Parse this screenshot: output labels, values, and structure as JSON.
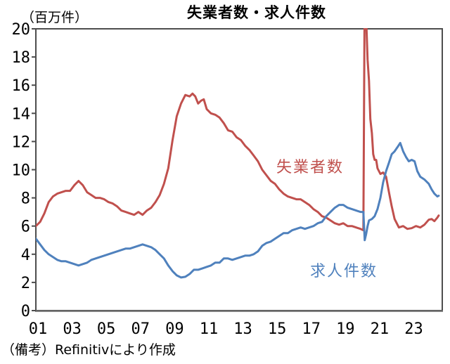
{
  "title": "失業者数・求人件数",
  "unit_label": "（百万件）",
  "note": "（備考）Refinitivにより作成",
  "series_labels": {
    "unemployed": "失業者数",
    "openings": "求人件数"
  },
  "colors": {
    "unemployed": "#C0504D",
    "openings": "#4F81BD",
    "frame": "#4d4d4d",
    "bottom_axis": "#808080",
    "text": "#000000"
  },
  "chart_data": {
    "type": "line",
    "title": "失業者数・求人件数",
    "ylabel": "（百万件）",
    "xlabel": "",
    "grid": false,
    "legend_position": "inline-annotations",
    "ylim": [
      0,
      20
    ],
    "x_domain": [
      2001,
      2024.79
    ],
    "y_ticks": [
      0,
      2,
      4,
      6,
      8,
      10,
      12,
      14,
      16,
      18,
      20
    ],
    "y_tick_labels": [
      "0",
      "2",
      "4",
      "6",
      "8",
      "10",
      "12",
      "14",
      "16",
      "18",
      "20"
    ],
    "x_ticks": [
      2001,
      2003,
      2005,
      2007,
      2009,
      2011,
      2013,
      2015,
      2017,
      2019,
      2021,
      2023
    ],
    "x_tick_labels": [
      "01",
      "03",
      "05",
      "07",
      "09",
      "11",
      "13",
      "15",
      "17",
      "19",
      "21",
      "23"
    ],
    "series": [
      {
        "name": "失業者数",
        "color": "#C0504D",
        "points": [
          [
            2001.0,
            6.0
          ],
          [
            2001.25,
            6.3
          ],
          [
            2001.5,
            6.9
          ],
          [
            2001.75,
            7.7
          ],
          [
            2002.0,
            8.1
          ],
          [
            2002.25,
            8.3
          ],
          [
            2002.5,
            8.4
          ],
          [
            2002.75,
            8.5
          ],
          [
            2003.0,
            8.5
          ],
          [
            2003.25,
            8.9
          ],
          [
            2003.5,
            9.2
          ],
          [
            2003.75,
            8.9
          ],
          [
            2004.0,
            8.4
          ],
          [
            2004.25,
            8.2
          ],
          [
            2004.5,
            8.0
          ],
          [
            2004.75,
            8.0
          ],
          [
            2005.0,
            7.9
          ],
          [
            2005.25,
            7.7
          ],
          [
            2005.5,
            7.6
          ],
          [
            2005.75,
            7.4
          ],
          [
            2006.0,
            7.1
          ],
          [
            2006.25,
            7.0
          ],
          [
            2006.5,
            6.9
          ],
          [
            2006.75,
            6.8
          ],
          [
            2007.0,
            7.0
          ],
          [
            2007.25,
            6.8
          ],
          [
            2007.5,
            7.1
          ],
          [
            2007.75,
            7.3
          ],
          [
            2008.0,
            7.7
          ],
          [
            2008.25,
            8.2
          ],
          [
            2008.5,
            9.0
          ],
          [
            2008.75,
            10.1
          ],
          [
            2009.0,
            12.1
          ],
          [
            2009.25,
            13.8
          ],
          [
            2009.5,
            14.7
          ],
          [
            2009.75,
            15.3
          ],
          [
            2010.0,
            15.2
          ],
          [
            2010.17,
            15.4
          ],
          [
            2010.33,
            15.2
          ],
          [
            2010.5,
            14.7
          ],
          [
            2010.67,
            14.9
          ],
          [
            2010.83,
            15.0
          ],
          [
            2011.0,
            14.3
          ],
          [
            2011.25,
            14.0
          ],
          [
            2011.5,
            13.9
          ],
          [
            2011.75,
            13.7
          ],
          [
            2012.0,
            13.3
          ],
          [
            2012.25,
            12.8
          ],
          [
            2012.5,
            12.7
          ],
          [
            2012.75,
            12.3
          ],
          [
            2013.0,
            12.1
          ],
          [
            2013.25,
            11.7
          ],
          [
            2013.5,
            11.4
          ],
          [
            2013.75,
            11.0
          ],
          [
            2014.0,
            10.6
          ],
          [
            2014.25,
            10.0
          ],
          [
            2014.5,
            9.6
          ],
          [
            2014.75,
            9.2
          ],
          [
            2015.0,
            9.0
          ],
          [
            2015.25,
            8.6
          ],
          [
            2015.5,
            8.3
          ],
          [
            2015.75,
            8.1
          ],
          [
            2016.0,
            8.0
          ],
          [
            2016.25,
            7.9
          ],
          [
            2016.5,
            7.9
          ],
          [
            2016.75,
            7.7
          ],
          [
            2017.0,
            7.5
          ],
          [
            2017.25,
            7.2
          ],
          [
            2017.5,
            7.0
          ],
          [
            2017.75,
            6.7
          ],
          [
            2018.0,
            6.6
          ],
          [
            2018.25,
            6.4
          ],
          [
            2018.5,
            6.2
          ],
          [
            2018.75,
            6.1
          ],
          [
            2019.0,
            6.2
          ],
          [
            2019.25,
            6.0
          ],
          [
            2019.5,
            6.0
          ],
          [
            2019.75,
            5.9
          ],
          [
            2020.0,
            5.8
          ],
          [
            2020.17,
            5.7
          ],
          [
            2020.25,
            23.1
          ],
          [
            2020.33,
            21.0
          ],
          [
            2020.42,
            17.8
          ],
          [
            2020.5,
            16.3
          ],
          [
            2020.58,
            13.6
          ],
          [
            2020.67,
            12.6
          ],
          [
            2020.75,
            11.1
          ],
          [
            2020.83,
            10.7
          ],
          [
            2020.92,
            10.7
          ],
          [
            2021.0,
            10.1
          ],
          [
            2021.17,
            9.7
          ],
          [
            2021.33,
            9.8
          ],
          [
            2021.5,
            9.5
          ],
          [
            2021.67,
            8.4
          ],
          [
            2021.83,
            7.4
          ],
          [
            2022.0,
            6.5
          ],
          [
            2022.25,
            5.9
          ],
          [
            2022.5,
            6.0
          ],
          [
            2022.75,
            5.8
          ],
          [
            2023.0,
            5.85
          ],
          [
            2023.25,
            6.0
          ],
          [
            2023.5,
            5.9
          ],
          [
            2023.75,
            6.1
          ],
          [
            2024.0,
            6.45
          ],
          [
            2024.17,
            6.5
          ],
          [
            2024.33,
            6.35
          ],
          [
            2024.5,
            6.6
          ],
          [
            2024.58,
            6.75
          ]
        ]
      },
      {
        "name": "求人件数",
        "color": "#4F81BD",
        "points": [
          [
            2001.0,
            5.1
          ],
          [
            2001.25,
            4.7
          ],
          [
            2001.5,
            4.3
          ],
          [
            2001.75,
            4.0
          ],
          [
            2002.0,
            3.8
          ],
          [
            2002.25,
            3.6
          ],
          [
            2002.5,
            3.5
          ],
          [
            2002.75,
            3.5
          ],
          [
            2003.0,
            3.4
          ],
          [
            2003.25,
            3.3
          ],
          [
            2003.5,
            3.2
          ],
          [
            2003.75,
            3.3
          ],
          [
            2004.0,
            3.4
          ],
          [
            2004.25,
            3.6
          ],
          [
            2004.5,
            3.7
          ],
          [
            2004.75,
            3.8
          ],
          [
            2005.0,
            3.9
          ],
          [
            2005.25,
            4.0
          ],
          [
            2005.5,
            4.1
          ],
          [
            2005.75,
            4.2
          ],
          [
            2006.0,
            4.3
          ],
          [
            2006.25,
            4.4
          ],
          [
            2006.5,
            4.4
          ],
          [
            2006.75,
            4.5
          ],
          [
            2007.0,
            4.6
          ],
          [
            2007.25,
            4.7
          ],
          [
            2007.5,
            4.6
          ],
          [
            2007.75,
            4.5
          ],
          [
            2008.0,
            4.3
          ],
          [
            2008.25,
            4.0
          ],
          [
            2008.5,
            3.7
          ],
          [
            2008.75,
            3.2
          ],
          [
            2009.0,
            2.8
          ],
          [
            2009.25,
            2.5
          ],
          [
            2009.5,
            2.35
          ],
          [
            2009.75,
            2.4
          ],
          [
            2010.0,
            2.6
          ],
          [
            2010.25,
            2.9
          ],
          [
            2010.5,
            2.9
          ],
          [
            2010.75,
            3.0
          ],
          [
            2011.0,
            3.1
          ],
          [
            2011.25,
            3.2
          ],
          [
            2011.5,
            3.4
          ],
          [
            2011.75,
            3.4
          ],
          [
            2012.0,
            3.7
          ],
          [
            2012.25,
            3.7
          ],
          [
            2012.5,
            3.6
          ],
          [
            2012.75,
            3.7
          ],
          [
            2013.0,
            3.8
          ],
          [
            2013.25,
            3.9
          ],
          [
            2013.5,
            3.9
          ],
          [
            2013.75,
            4.0
          ],
          [
            2014.0,
            4.2
          ],
          [
            2014.25,
            4.6
          ],
          [
            2014.5,
            4.8
          ],
          [
            2014.75,
            4.9
          ],
          [
            2015.0,
            5.1
          ],
          [
            2015.25,
            5.3
          ],
          [
            2015.5,
            5.5
          ],
          [
            2015.75,
            5.5
          ],
          [
            2016.0,
            5.7
          ],
          [
            2016.25,
            5.8
          ],
          [
            2016.5,
            5.9
          ],
          [
            2016.75,
            5.8
          ],
          [
            2017.0,
            5.9
          ],
          [
            2017.25,
            6.0
          ],
          [
            2017.5,
            6.2
          ],
          [
            2017.75,
            6.3
          ],
          [
            2018.0,
            6.7
          ],
          [
            2018.25,
            7.0
          ],
          [
            2018.5,
            7.3
          ],
          [
            2018.75,
            7.5
          ],
          [
            2019.0,
            7.5
          ],
          [
            2019.25,
            7.3
          ],
          [
            2019.5,
            7.2
          ],
          [
            2019.75,
            7.1
          ],
          [
            2020.0,
            7.0
          ],
          [
            2020.17,
            7.0
          ],
          [
            2020.25,
            5.0
          ],
          [
            2020.33,
            5.4
          ],
          [
            2020.42,
            6.0
          ],
          [
            2020.5,
            6.4
          ],
          [
            2020.67,
            6.5
          ],
          [
            2020.83,
            6.7
          ],
          [
            2021.0,
            7.2
          ],
          [
            2021.17,
            8.0
          ],
          [
            2021.33,
            9.1
          ],
          [
            2021.5,
            9.9
          ],
          [
            2021.67,
            10.5
          ],
          [
            2021.83,
            11.1
          ],
          [
            2022.0,
            11.3
          ],
          [
            2022.17,
            11.6
          ],
          [
            2022.33,
            11.9
          ],
          [
            2022.5,
            11.3
          ],
          [
            2022.67,
            10.9
          ],
          [
            2022.83,
            10.6
          ],
          [
            2023.0,
            10.7
          ],
          [
            2023.17,
            10.6
          ],
          [
            2023.33,
            9.9
          ],
          [
            2023.5,
            9.5
          ],
          [
            2023.75,
            9.3
          ],
          [
            2024.0,
            9.0
          ],
          [
            2024.17,
            8.6
          ],
          [
            2024.33,
            8.3
          ],
          [
            2024.5,
            8.1
          ],
          [
            2024.58,
            8.15
          ]
        ]
      }
    ]
  }
}
